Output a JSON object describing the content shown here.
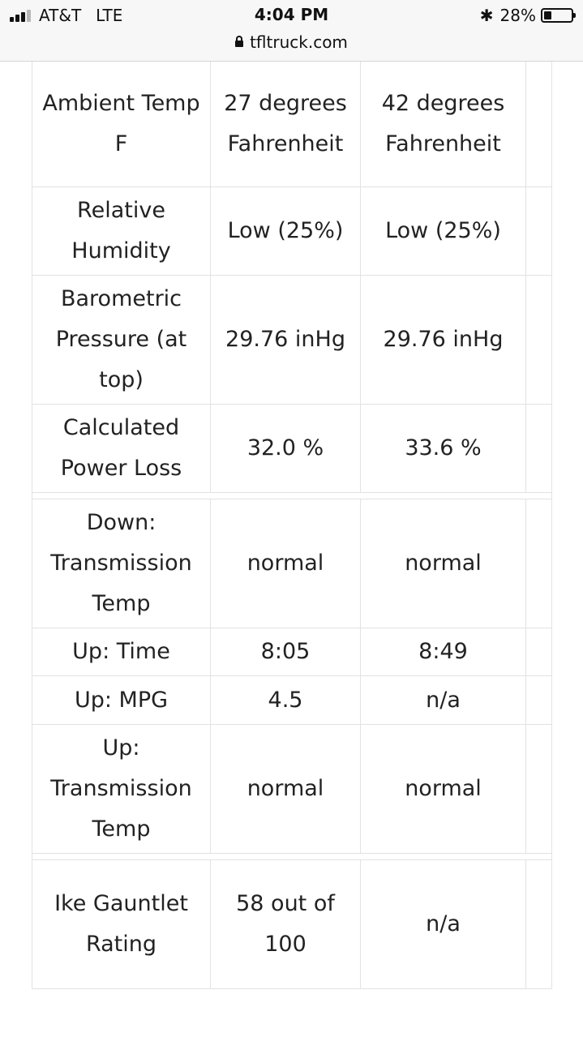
{
  "status_bar": {
    "carrier": "AT&T",
    "network": "LTE",
    "time": "4:04 PM",
    "battery_text": "28%",
    "battery_level": 0.28,
    "url": "tfltruck.com",
    "bluetooth_glyph": "✱"
  },
  "table": {
    "rows": [
      {
        "label": "Ambient Temp F",
        "col2": "27 degrees Fahrenheit",
        "col3": "42 degrees Fahrenheit"
      },
      {
        "label": "Relative Humidity",
        "col2": "Low (25%)",
        "col3": "Low (25%)"
      },
      {
        "label": "Barometric Pressure (at top)",
        "col2": "29.76 inHg",
        "col3": "29.76 inHg"
      },
      {
        "label": "Calculated Power Loss",
        "col2": "32.0 %",
        "col3": "33.6 %"
      },
      {
        "label": "Down: Transmission Temp",
        "col2": "normal",
        "col3": "normal"
      },
      {
        "label": "Up: Time",
        "col2": "8:05",
        "col3": "8:49"
      },
      {
        "label": "Up: MPG",
        "col2": "4.5",
        "col3": "n/a"
      },
      {
        "label": "Up: Transmission Temp",
        "col2": "normal",
        "col3": "normal"
      },
      {
        "label": "Ike Gauntlet Rating",
        "col2": "58 out of 100",
        "col3": "n/a"
      }
    ]
  }
}
